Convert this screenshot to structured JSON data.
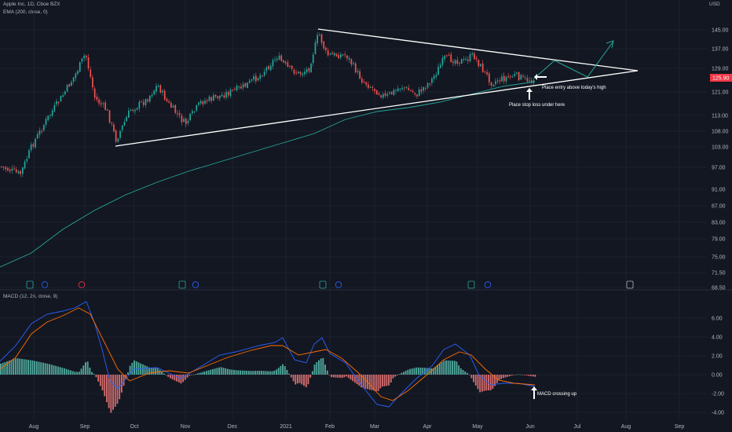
{
  "header": {
    "symbol_line": "Apple Inc, 1D, Cboe BZX",
    "ema_line": "EMA (200, close, 0)",
    "currency": "USD",
    "macd_line": "MACD (12, 26, close, 9)"
  },
  "price_axis": {
    "ticks": [
      "145.00",
      "137.00",
      "129.00",
      "121.00",
      "113.00",
      "108.00",
      "103.00",
      "97.00",
      "91.00",
      "87.00",
      "83.00",
      "79.00",
      "75.00",
      "71.50",
      "68.50"
    ],
    "last_price": "125.90",
    "last_price_color": "#f23645"
  },
  "macd_axis": {
    "ticks": [
      "6.00",
      "4.00",
      "2.00",
      "0.00",
      "-2.00",
      "-4.00"
    ]
  },
  "x_axis": {
    "labels": [
      "Aug",
      "Sep",
      "Oct",
      "Nov",
      "Dec",
      "2021",
      "Feb",
      "Mar",
      "Apr",
      "May",
      "Jun",
      "Jul",
      "Aug",
      "Sep"
    ]
  },
  "annotations": {
    "entry": "Place entry above today's high",
    "stop": "Place stop loss under here",
    "macd": "MACD crossing up"
  },
  "colors": {
    "up": "#26a69a",
    "down": "#ef5350",
    "ema": "#26a69a",
    "macd": "#2962ff",
    "signal": "#ff6d00",
    "grid": "#1e222d",
    "background": "#131722"
  },
  "chart_data": {
    "type": "candlestick",
    "title": "Apple Inc, 1D, Cboe BZX",
    "price_range": [
      68.5,
      150
    ],
    "ema_period": 200,
    "trend_lines": [
      {
        "name": "triangle-upper",
        "from": [
          "2021-01-26",
          145.09
        ],
        "to": [
          "2021-08-10",
          129.0
        ]
      },
      {
        "name": "triangle-lower",
        "from": [
          "2020-09-21",
          103.1
        ],
        "to": [
          "2021-08-10",
          129.0
        ]
      }
    ],
    "projected_path": [
      125.9,
      131.5,
      126.0,
      138.5
    ],
    "macd_range": [
      -4.5,
      7.5
    ]
  }
}
